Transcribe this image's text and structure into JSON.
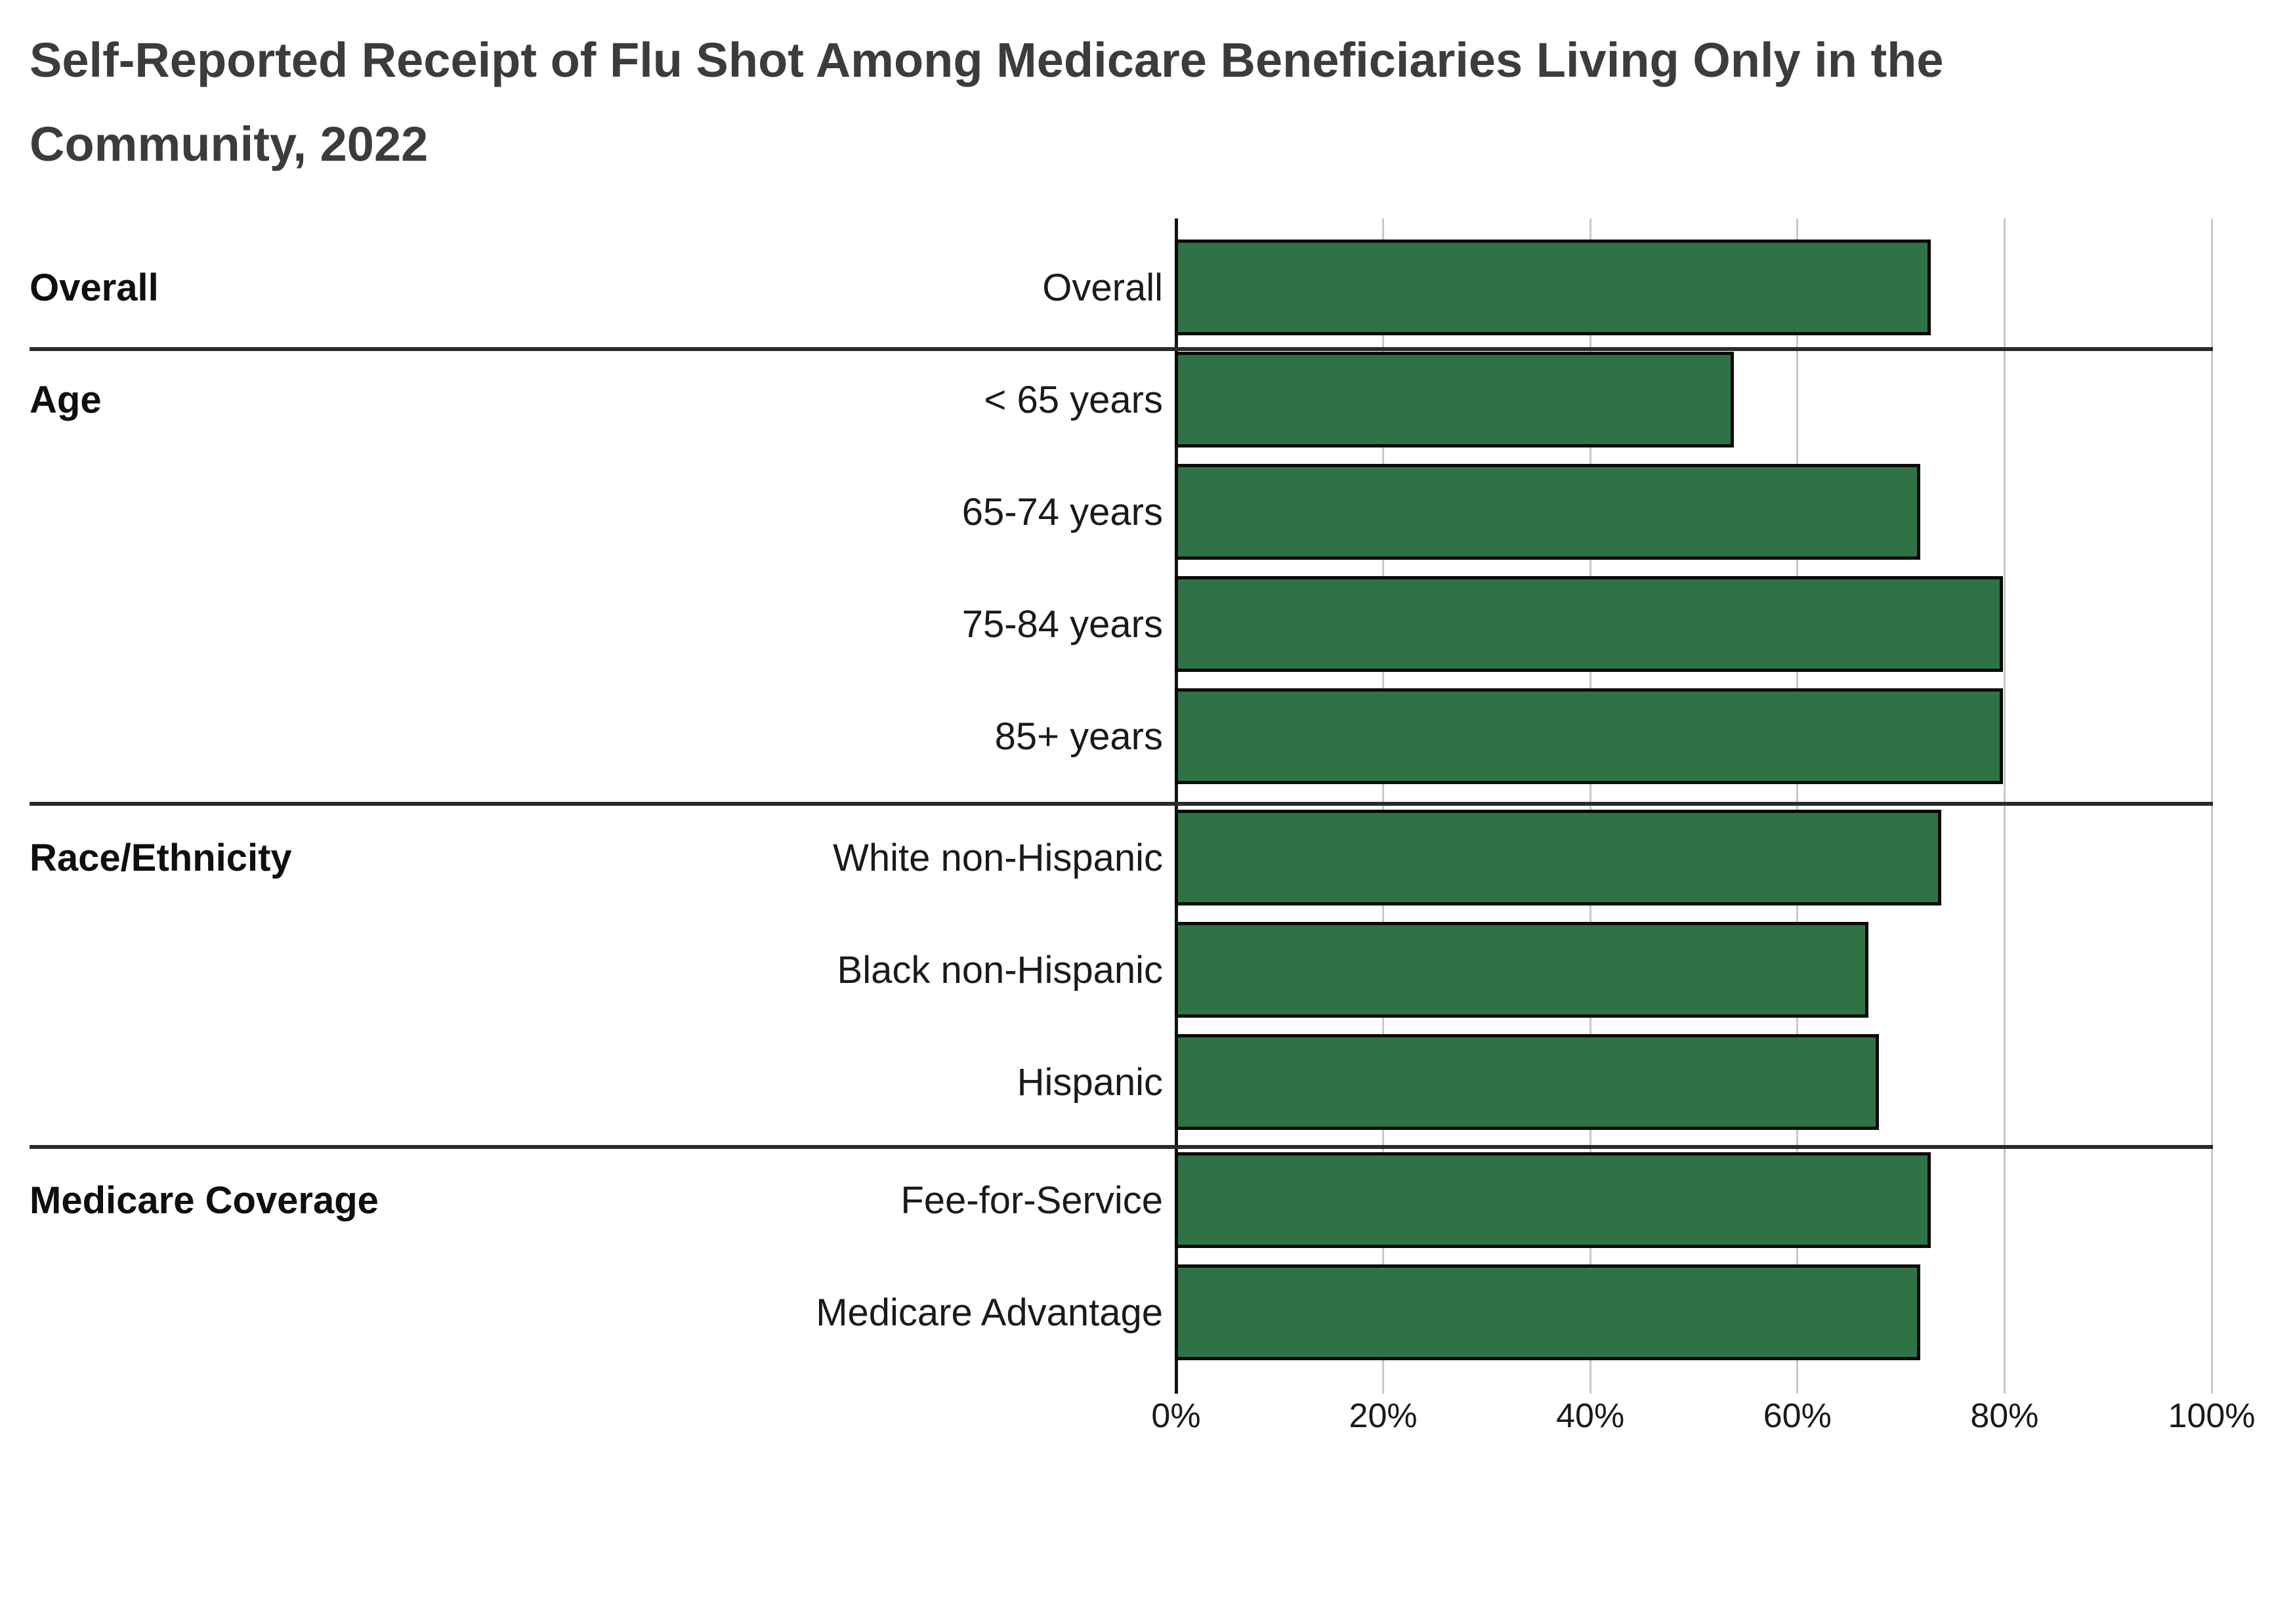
{
  "title": "Self-Reported Receipt of Flu Shot Among Medicare Beneficiaries Living Only in the Community, 2022",
  "colors": {
    "bar_fill": "#2F7246",
    "bar_border": "#0A0A0A",
    "gridline": "#C9C9C9",
    "section_divider": "#2B2B2B",
    "axis_line": "#151515",
    "title_text": "#3C3C3C",
    "label_text": "#1A1A1A",
    "background": "#FFFFFF"
  },
  "x_axis": {
    "min": 0,
    "max": 100,
    "tick_labels": [
      "0%",
      "20%",
      "40%",
      "60%",
      "80%",
      "100%"
    ]
  },
  "sections": [
    {
      "label": "Overall",
      "rows": [
        {
          "label": "Overall",
          "value": 73
        }
      ]
    },
    {
      "label": "Age",
      "rows": [
        {
          "label": "< 65 years",
          "value": 54
        },
        {
          "label": "65-74 years",
          "value": 72
        },
        {
          "label": "75-84 years",
          "value": 80
        },
        {
          "label": "85+ years",
          "value": 80
        }
      ]
    },
    {
      "label": "Race/Ethnicity",
      "rows": [
        {
          "label": "White non-Hispanic",
          "value": 74
        },
        {
          "label": "Black non-Hispanic",
          "value": 67
        },
        {
          "label": "Hispanic",
          "value": 68
        }
      ]
    },
    {
      "label": "Medicare Coverage",
      "rows": [
        {
          "label": "Fee-for-Service",
          "value": 73
        },
        {
          "label": "Medicare Advantage",
          "value": 72
        }
      ]
    }
  ],
  "chart_data": {
    "type": "bar",
    "orientation": "horizontal",
    "title": "Self-Reported Receipt of Flu Shot Among Medicare Beneficiaries Living Only in the Community, 2022",
    "categories": [
      "Overall",
      "< 65 years",
      "65-74 years",
      "75-84 years",
      "85+ years",
      "White non-Hispanic",
      "Black non-Hispanic",
      "Hispanic",
      "Fee-for-Service",
      "Medicare Advantage"
    ],
    "values": [
      73,
      54,
      72,
      80,
      80,
      74,
      67,
      68,
      73,
      72
    ],
    "group_labels": [
      "Overall",
      "Age",
      "Race/Ethnicity",
      "Medicare Coverage"
    ],
    "groups": [
      [
        "Overall"
      ],
      [
        "< 65 years",
        "65-74 years",
        "75-84 years",
        "85+ years"
      ],
      [
        "White non-Hispanic",
        "Black non-Hispanic",
        "Hispanic"
      ],
      [
        "Fee-for-Service",
        "Medicare Advantage"
      ]
    ],
    "xlabel": "",
    "ylabel": "",
    "xlim": [
      0,
      100
    ],
    "x_tick_labels": [
      "0%",
      "20%",
      "40%",
      "60%",
      "80%",
      "100%"
    ],
    "grid": "vertical-20pct",
    "legend": "none",
    "bar_color": "#2F7246",
    "bar_border_color": "#0A0A0A"
  }
}
